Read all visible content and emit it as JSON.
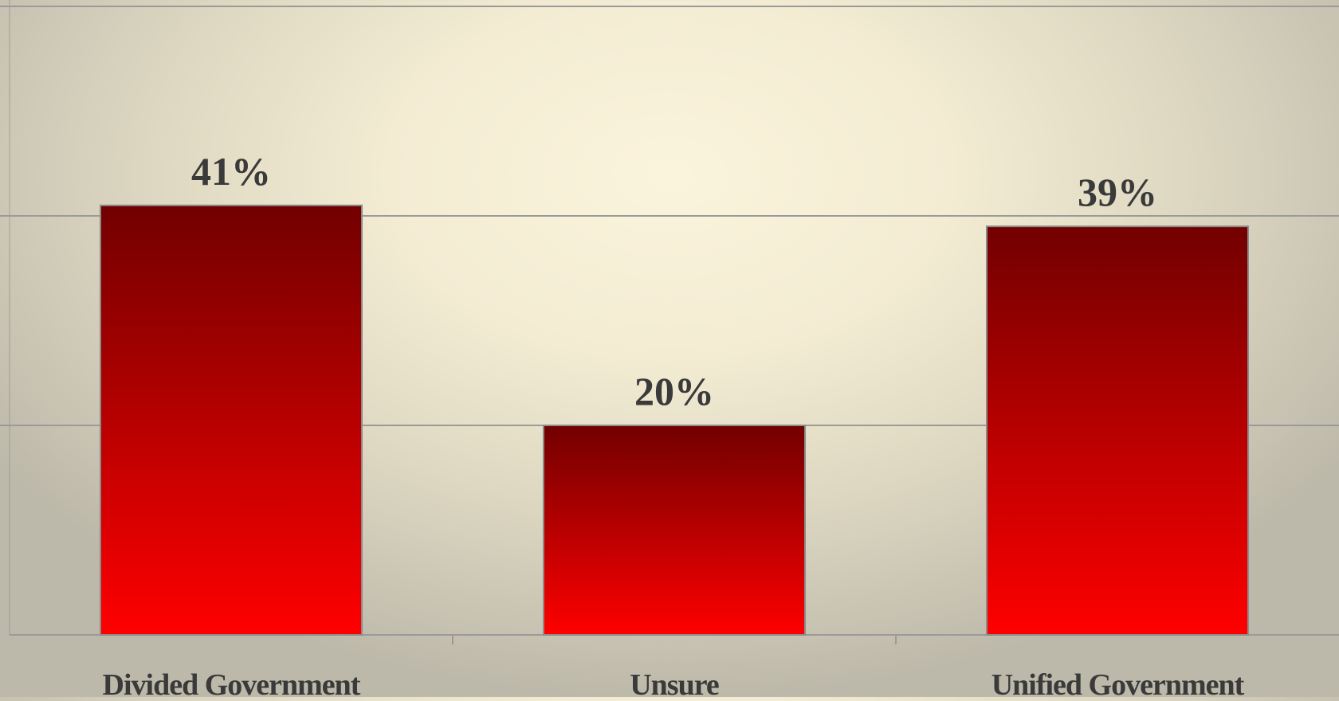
{
  "chart_data": {
    "type": "bar",
    "categories": [
      "Divided Government",
      "Unsure",
      "Unified Government"
    ],
    "values": [
      41,
      20,
      39
    ],
    "data_labels": [
      "41%",
      "20%",
      "39%"
    ],
    "ylim": [
      0,
      60
    ],
    "gridlines": [
      0,
      20,
      40,
      60
    ],
    "grid": true,
    "legend": "none",
    "title": "",
    "xlabel": "",
    "ylabel": "",
    "colors": {
      "bar_top": "#720000",
      "bar_bottom": "#ff0000",
      "bar_border": "#8c8c8c",
      "gridline": "#9a9a9a",
      "label_text": "#3a3a3a"
    }
  }
}
